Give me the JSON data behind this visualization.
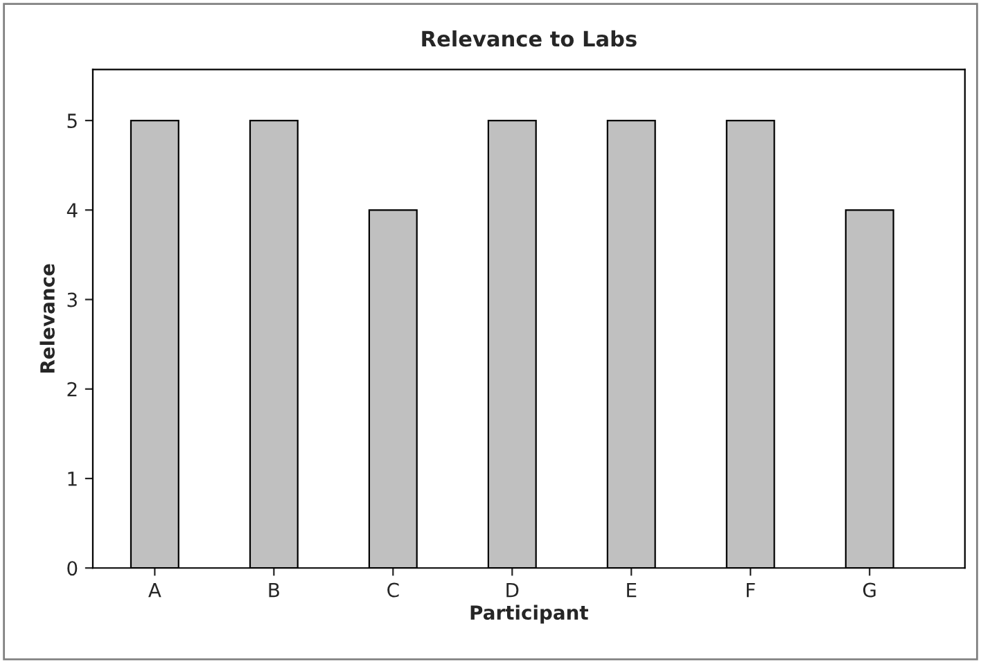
{
  "chart_data": {
    "type": "bar",
    "title": "Relevance to Labs",
    "xlabel": "Participant",
    "ylabel": "Relevance",
    "categories": [
      "A",
      "B",
      "C",
      "D",
      "E",
      "F",
      "G"
    ],
    "values": [
      5,
      5,
      4,
      5,
      5,
      5,
      4
    ],
    "color": "#c0c0c0",
    "ylim": [
      0,
      5.57
    ],
    "yticks": [
      0,
      1,
      2,
      3,
      4,
      5
    ],
    "grid": false,
    "legend": false
  }
}
